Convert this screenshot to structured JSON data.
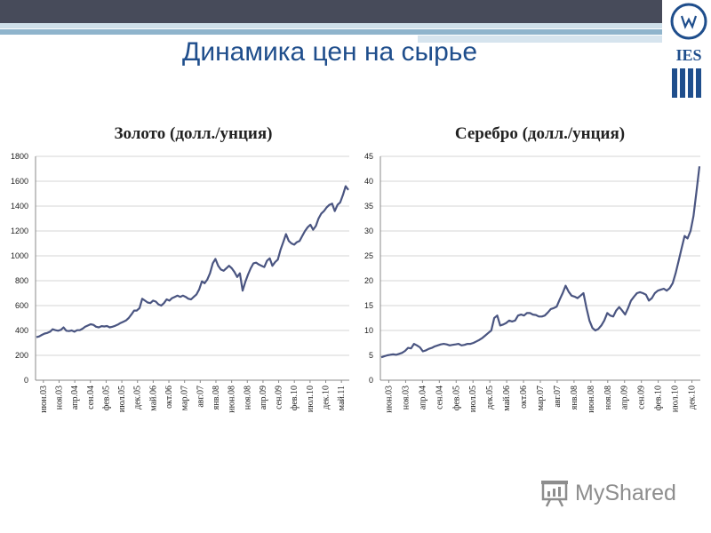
{
  "slide": {
    "title": "Динамика цен на сырье"
  },
  "logo": {
    "text": "IES",
    "icon": "ies-emblem-icon"
  },
  "watermark": {
    "text": "MyShared",
    "icon": "presentation-board-icon"
  },
  "colors": {
    "line": "#4a5581",
    "title": "#1f4e8c",
    "bar": "#474b5a"
  },
  "chart_data": [
    {
      "type": "line",
      "title": "Золото (долл./унция)",
      "ylim": [
        0,
        1800
      ],
      "yticks": [
        0,
        200,
        400,
        600,
        800,
        1000,
        1200,
        1400,
        1600,
        1800
      ],
      "x_tick_labels": [
        "июн.03",
        "ноя.03",
        "апр.04",
        "сен.04",
        "фев.05",
        "июл.05",
        "дек.05",
        "май.06",
        "окт.06",
        "мар.07",
        "авг.07",
        "янв.08",
        "июн.08",
        "ноя.08",
        "апр.09",
        "сен.09",
        "фев.10",
        "июл.10",
        "дек.10",
        "май.11"
      ],
      "grid": true,
      "series": [
        {
          "values": [
            346,
            352,
            364,
            375,
            380,
            390,
            410,
            402,
            398,
            405,
            424,
            398,
            395,
            400,
            390,
            402,
            402,
            414,
            430,
            440,
            450,
            445,
            430,
            425,
            435,
            432,
            436,
            425,
            430,
            437,
            447,
            460,
            470,
            480,
            500,
            528,
            560,
            560,
            580,
            655,
            640,
            625,
            620,
            640,
            632,
            610,
            600,
            620,
            650,
            640,
            660,
            670,
            680,
            670,
            680,
            670,
            655,
            650,
            670,
            690,
            730,
            795,
            780,
            810,
            860,
            940,
            975,
            920,
            890,
            880,
            900,
            920,
            900,
            870,
            830,
            860,
            720,
            790,
            850,
            900,
            940,
            945,
            930,
            920,
            910,
            960,
            980,
            920,
            950,
            970,
            1050,
            1110,
            1175,
            1120,
            1100,
            1090,
            1110,
            1120,
            1160,
            1200,
            1230,
            1250,
            1210,
            1240,
            1300,
            1340,
            1360,
            1390,
            1410,
            1420,
            1360,
            1410,
            1430,
            1490,
            1560,
            1530
          ]
        }
      ]
    },
    {
      "type": "line",
      "title": "Серебро (долл./унция)",
      "ylim": [
        0,
        45
      ],
      "yticks": [
        0,
        5,
        10,
        15,
        20,
        25,
        30,
        35,
        40,
        45
      ],
      "x_tick_labels": [
        "июн.03",
        "ноя.03",
        "апр.04",
        "сен.04",
        "фев.05",
        "июл.05",
        "дек.05",
        "май.06",
        "окт.06",
        "мар.07",
        "авг.07",
        "янв.08",
        "июн.08",
        "ноя.08",
        "апр.09",
        "сен.09",
        "фев.10",
        "июл.10",
        "дек.10"
      ],
      "grid": true,
      "series": [
        {
          "values": [
            4.6,
            4.8,
            5.0,
            5.1,
            5.2,
            5.1,
            5.3,
            5.5,
            5.9,
            6.5,
            6.4,
            7.3,
            7.0,
            6.6,
            5.8,
            6.0,
            6.3,
            6.5,
            6.8,
            7.0,
            7.2,
            7.3,
            7.2,
            7.0,
            7.1,
            7.2,
            7.3,
            7.0,
            7.1,
            7.3,
            7.3,
            7.5,
            7.8,
            8.1,
            8.5,
            9.0,
            9.5,
            10.0,
            12.5,
            13.0,
            11.0,
            11.2,
            11.5,
            12.0,
            11.8,
            12.0,
            13.0,
            13.2,
            13.0,
            13.5,
            13.5,
            13.2,
            13.1,
            12.8,
            12.8,
            13.0,
            13.6,
            14.3,
            14.5,
            14.8,
            16.2,
            17.5,
            19.0,
            17.8,
            17.0,
            16.8,
            16.5,
            17.0,
            17.5,
            14.5,
            12.0,
            10.5,
            10.0,
            10.3,
            11.0,
            12.0,
            13.5,
            13.0,
            12.8,
            14.0,
            14.7,
            14.0,
            13.2,
            14.5,
            16.0,
            16.8,
            17.5,
            17.7,
            17.5,
            17.2,
            16.0,
            16.5,
            17.5,
            18.0,
            18.2,
            18.4,
            18.0,
            18.5,
            19.5,
            21.5,
            24.0,
            26.5,
            29.0,
            28.5,
            30.0,
            33.0,
            38.0,
            43.0
          ]
        }
      ]
    }
  ]
}
